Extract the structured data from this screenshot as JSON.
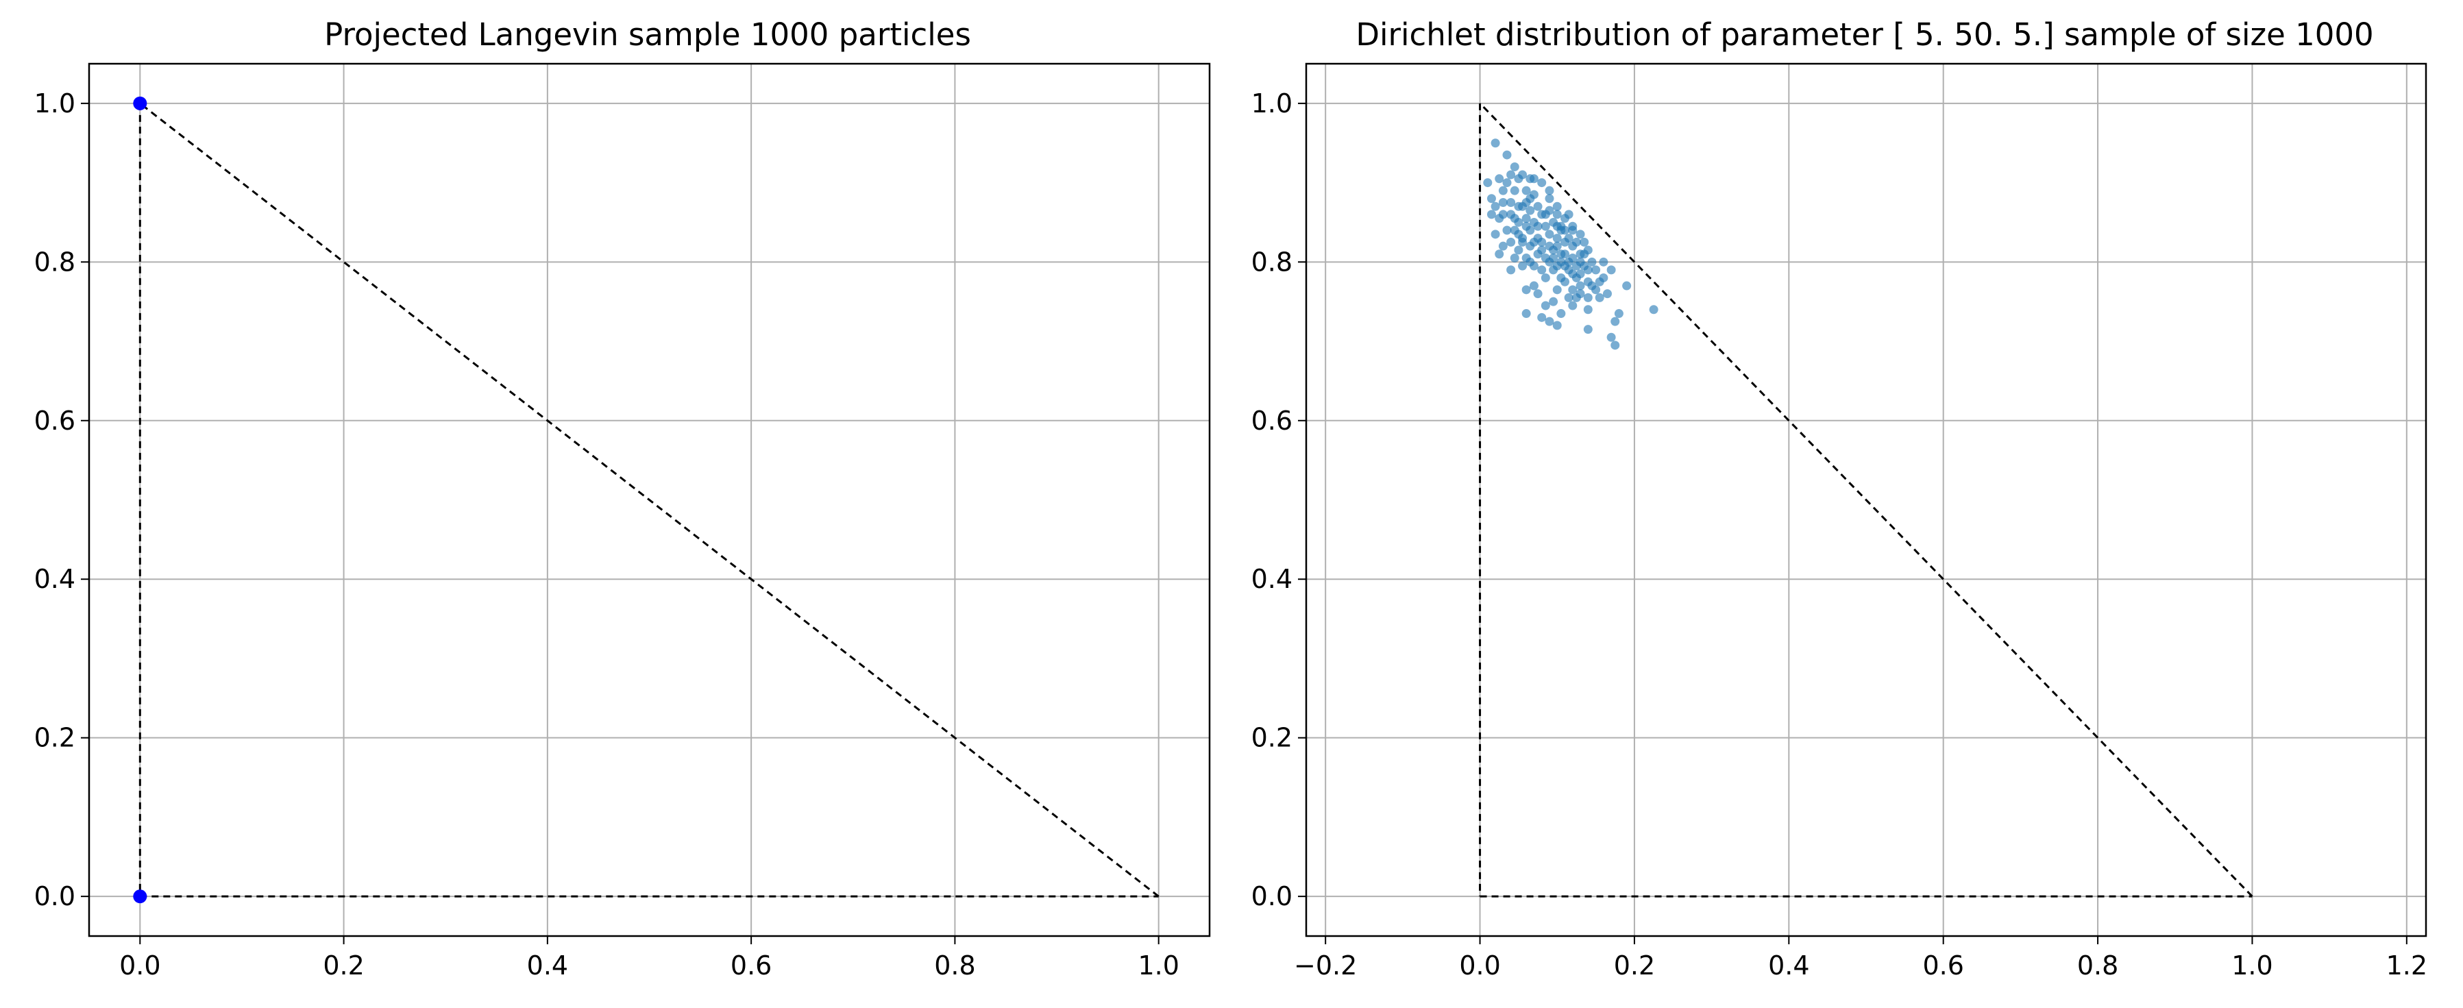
{
  "chart_data": [
    {
      "type": "scatter",
      "title": "Projected Langevin sample 1000 particles",
      "xlabel": "",
      "ylabel": "",
      "xlim": [
        -0.05,
        1.05
      ],
      "ylim": [
        -0.05,
        1.05
      ],
      "xticks": [
        0.0,
        0.2,
        0.4,
        0.6,
        0.8,
        1.0
      ],
      "xtick_labels": [
        "0.0",
        "0.2",
        "0.4",
        "0.6",
        "0.8",
        "1.0"
      ],
      "yticks": [
        0.0,
        0.2,
        0.4,
        0.6,
        0.8,
        1.0
      ],
      "ytick_labels": [
        "0.0",
        "0.2",
        "0.4",
        "0.6",
        "0.8",
        "1.0"
      ],
      "grid": true,
      "legend": "none",
      "simplex": [
        [
          0,
          0
        ],
        [
          1,
          0
        ],
        [
          0,
          1
        ]
      ],
      "point_color": "#0000ff",
      "points": [
        [
          0.0,
          1.0
        ],
        [
          0.0,
          0.0
        ]
      ]
    },
    {
      "type": "scatter",
      "title": "Dirichlet distribution of parameter [ 5. 50.  5.] sample of size 1000",
      "xlabel": "",
      "ylabel": "",
      "xlim": [
        -0.225,
        1.225
      ],
      "ylim": [
        -0.05,
        1.05
      ],
      "xticks": [
        -0.2,
        0.0,
        0.2,
        0.4,
        0.6,
        0.8,
        1.0,
        1.2
      ],
      "xtick_labels": [
        "−0.2",
        "0.0",
        "0.2",
        "0.4",
        "0.6",
        "0.8",
        "1.0",
        "1.2"
      ],
      "yticks": [
        0.0,
        0.2,
        0.4,
        0.6,
        0.8,
        1.0
      ],
      "ytick_labels": [
        "0.0",
        "0.2",
        "0.4",
        "0.6",
        "0.8",
        "1.0"
      ],
      "grid": true,
      "legend": "none",
      "simplex": [
        [
          0,
          0
        ],
        [
          1,
          0
        ],
        [
          0,
          1
        ]
      ],
      "point_color": "#1f77b4",
      "points": [
        [
          0.02,
          0.95
        ],
        [
          0.035,
          0.935
        ],
        [
          0.025,
          0.905
        ],
        [
          0.045,
          0.92
        ],
        [
          0.03,
          0.89
        ],
        [
          0.05,
          0.905
        ],
        [
          0.06,
          0.89
        ],
        [
          0.04,
          0.875
        ],
        [
          0.055,
          0.87
        ],
        [
          0.07,
          0.885
        ],
        [
          0.08,
          0.9
        ],
        [
          0.065,
          0.865
        ],
        [
          0.075,
          0.87
        ],
        [
          0.09,
          0.88
        ],
        [
          0.085,
          0.86
        ],
        [
          0.1,
          0.87
        ],
        [
          0.095,
          0.85
        ],
        [
          0.11,
          0.855
        ],
        [
          0.07,
          0.85
        ],
        [
          0.06,
          0.845
        ],
        [
          0.05,
          0.85
        ],
        [
          0.04,
          0.86
        ],
        [
          0.03,
          0.86
        ],
        [
          0.02,
          0.87
        ],
        [
          0.025,
          0.855
        ],
        [
          0.045,
          0.84
        ],
        [
          0.055,
          0.83
        ],
        [
          0.065,
          0.84
        ],
        [
          0.075,
          0.83
        ],
        [
          0.085,
          0.845
        ],
        [
          0.08,
          0.825
        ],
        [
          0.09,
          0.835
        ],
        [
          0.105,
          0.84
        ],
        [
          0.115,
          0.83
        ],
        [
          0.12,
          0.845
        ],
        [
          0.125,
          0.825
        ],
        [
          0.13,
          0.835
        ],
        [
          0.1,
          0.82
        ],
        [
          0.11,
          0.81
        ],
        [
          0.095,
          0.815
        ],
        [
          0.085,
          0.805
        ],
        [
          0.075,
          0.81
        ],
        [
          0.065,
          0.82
        ],
        [
          0.06,
          0.805
        ],
        [
          0.05,
          0.815
        ],
        [
          0.04,
          0.825
        ],
        [
          0.035,
          0.84
        ],
        [
          0.03,
          0.82
        ],
        [
          0.07,
          0.795
        ],
        [
          0.08,
          0.79
        ],
        [
          0.09,
          0.8
        ],
        [
          0.1,
          0.795
        ],
        [
          0.105,
          0.8
        ],
        [
          0.115,
          0.79
        ],
        [
          0.12,
          0.805
        ],
        [
          0.13,
          0.81
        ],
        [
          0.135,
          0.795
        ],
        [
          0.14,
          0.815
        ],
        [
          0.145,
          0.8
        ],
        [
          0.15,
          0.79
        ],
        [
          0.125,
          0.78
        ],
        [
          0.11,
          0.775
        ],
        [
          0.12,
          0.765
        ],
        [
          0.13,
          0.77
        ],
        [
          0.14,
          0.775
        ],
        [
          0.15,
          0.765
        ],
        [
          0.16,
          0.78
        ],
        [
          0.17,
          0.79
        ],
        [
          0.165,
          0.76
        ],
        [
          0.155,
          0.755
        ],
        [
          0.14,
          0.755
        ],
        [
          0.125,
          0.755
        ],
        [
          0.1,
          0.765
        ],
        [
          0.085,
          0.78
        ],
        [
          0.095,
          0.75
        ],
        [
          0.06,
          0.765
        ],
        [
          0.055,
          0.795
        ],
        [
          0.045,
          0.805
        ],
        [
          0.025,
          0.81
        ],
        [
          0.02,
          0.835
        ],
        [
          0.015,
          0.88
        ],
        [
          0.01,
          0.9
        ],
        [
          0.035,
          0.9
        ],
        [
          0.055,
          0.91
        ],
        [
          0.065,
          0.905
        ],
        [
          0.07,
          0.905
        ],
        [
          0.09,
          0.89
        ],
        [
          0.1,
          0.86
        ],
        [
          0.105,
          0.845
        ],
        [
          0.115,
          0.86
        ],
        [
          0.08,
          0.86
        ],
        [
          0.065,
          0.88
        ],
        [
          0.045,
          0.89
        ],
        [
          0.04,
          0.91
        ],
        [
          0.05,
          0.87
        ],
        [
          0.1,
          0.83
        ],
        [
          0.11,
          0.825
        ],
        [
          0.12,
          0.82
        ],
        [
          0.13,
          0.8
        ],
        [
          0.125,
          0.795
        ],
        [
          0.11,
          0.795
        ],
        [
          0.095,
          0.805
        ],
        [
          0.08,
          0.815
        ],
        [
          0.075,
          0.845
        ],
        [
          0.06,
          0.855
        ],
        [
          0.055,
          0.825
        ],
        [
          0.09,
          0.82
        ],
        [
          0.14,
          0.79
        ],
        [
          0.135,
          0.81
        ],
        [
          0.11,
          0.84
        ],
        [
          0.14,
          0.74
        ],
        [
          0.12,
          0.745
        ],
        [
          0.105,
          0.735
        ],
        [
          0.09,
          0.725
        ],
        [
          0.08,
          0.73
        ],
        [
          0.06,
          0.735
        ],
        [
          0.1,
          0.72
        ],
        [
          0.14,
          0.715
        ],
        [
          0.17,
          0.705
        ],
        [
          0.175,
          0.695
        ],
        [
          0.175,
          0.725
        ],
        [
          0.18,
          0.735
        ],
        [
          0.19,
          0.77
        ],
        [
          0.225,
          0.74
        ],
        [
          0.105,
          0.78
        ],
        [
          0.115,
          0.755
        ],
        [
          0.13,
          0.785
        ],
        [
          0.145,
          0.77
        ],
        [
          0.155,
          0.775
        ],
        [
          0.07,
          0.77
        ],
        [
          0.04,
          0.79
        ],
        [
          0.075,
          0.76
        ],
        [
          0.085,
          0.745
        ],
        [
          0.06,
          0.875
        ],
        [
          0.09,
          0.865
        ],
        [
          0.12,
          0.84
        ],
        [
          0.135,
          0.825
        ],
        [
          0.1,
          0.845
        ],
        [
          0.07,
          0.825
        ],
        [
          0.05,
          0.835
        ],
        [
          0.03,
          0.875
        ],
        [
          0.015,
          0.86
        ],
        [
          0.065,
          0.8
        ],
        [
          0.045,
          0.855
        ],
        [
          0.105,
          0.81
        ],
        [
          0.115,
          0.8
        ],
        [
          0.095,
          0.79
        ],
        [
          0.12,
          0.785
        ],
        [
          0.13,
          0.76
        ],
        [
          0.16,
          0.8
        ]
      ]
    }
  ]
}
